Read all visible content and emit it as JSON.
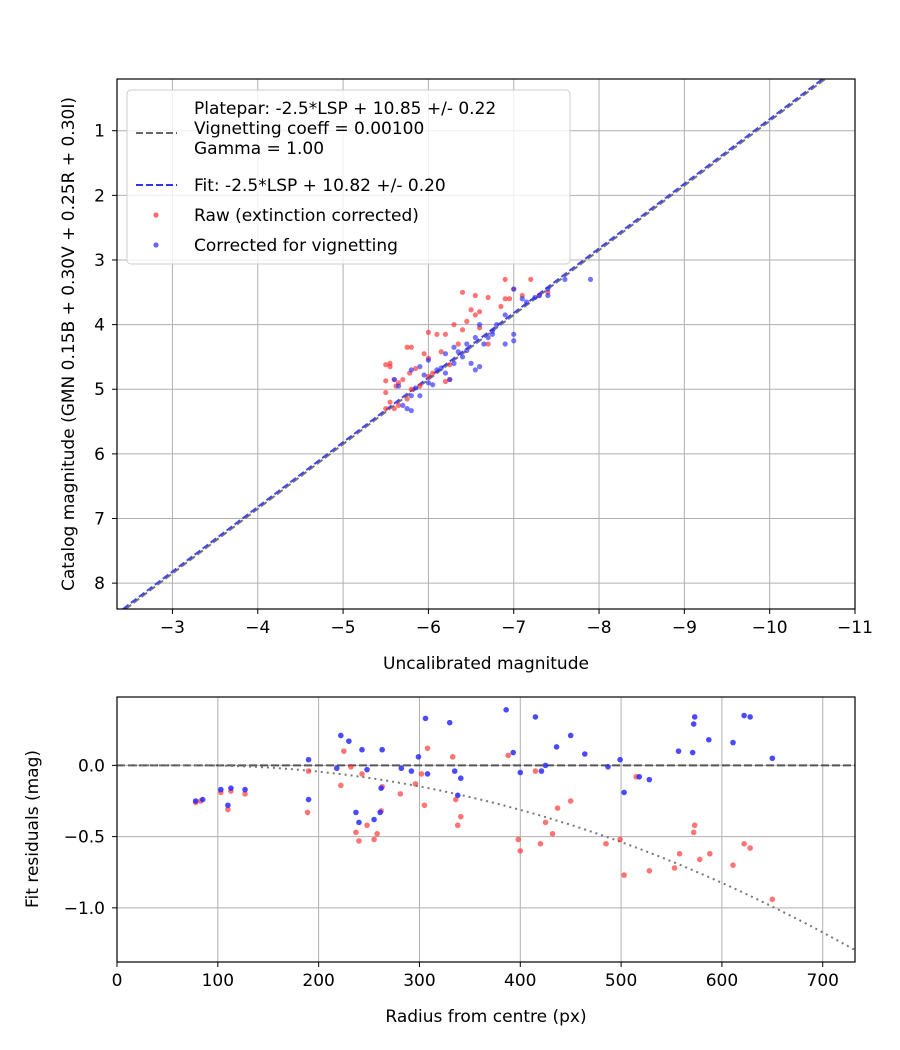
{
  "chart_data": [
    {
      "type": "scatter",
      "xlabel": "Uncalibrated magnitude",
      "ylabel": "Catalog magnitude (GMN 0.15B + 0.30V + 0.25R + 0.30I)",
      "xlim": [
        -2.35,
        -11.0
      ],
      "ylim": [
        8.4,
        0.2
      ],
      "x_inverted": true,
      "y_inverted": true,
      "grid": true,
      "legend_position": "top-left",
      "xticks": [
        -3,
        -4,
        -5,
        -6,
        -7,
        -8,
        -9,
        -10,
        -11
      ],
      "xtick_labels": [
        "−3",
        "−4",
        "−5",
        "−6",
        "−7",
        "−8",
        "−9",
        "−10",
        "−11"
      ],
      "yticks": [
        1,
        2,
        3,
        4,
        5,
        6,
        7,
        8
      ],
      "ytick_labels": [
        "1",
        "2",
        "3",
        "4",
        "5",
        "6",
        "7",
        "8"
      ],
      "lines": [
        {
          "name": "Platepar: -2.5*LSP + 10.85 +/- 0.22\nVignetting coeff = 0.00100\nGamma = 1.00",
          "style": "dashed",
          "color": "#666666",
          "offset": 10.85
        },
        {
          "name": "Fit: -2.5*LSP + 10.82 +/- 0.20",
          "style": "dashed",
          "color": "#3333ee",
          "offset": 10.82
        }
      ],
      "series": [
        {
          "name": "Raw (extinction corrected)",
          "color": "#ff2a2a",
          "points": [
            [
              -5.5,
              4.62
            ],
            [
              -5.55,
              4.65
            ],
            [
              -5.6,
              4.85
            ],
            [
              -5.5,
              4.87
            ],
            [
              -5.62,
              4.95
            ],
            [
              -5.5,
              5.05
            ],
            [
              -5.55,
              5.2
            ],
            [
              -5.5,
              5.3
            ],
            [
              -5.6,
              5.3
            ],
            [
              -5.65,
              5.25
            ],
            [
              -5.75,
              5.15
            ],
            [
              -5.7,
              4.85
            ],
            [
              -5.78,
              4.75
            ],
            [
              -5.75,
              4.35
            ],
            [
              -5.8,
              4.35
            ],
            [
              -5.85,
              4.68
            ],
            [
              -5.9,
              4.95
            ],
            [
              -5.95,
              4.45
            ],
            [
              -6.0,
              4.52
            ],
            [
              -6.0,
              4.12
            ],
            [
              -6.1,
              4.15
            ],
            [
              -6.15,
              4.42
            ],
            [
              -6.2,
              4.88
            ],
            [
              -6.25,
              4.85
            ],
            [
              -6.25,
              4.62
            ],
            [
              -6.3,
              4.0
            ],
            [
              -6.4,
              4.08
            ],
            [
              -6.4,
              3.5
            ],
            [
              -6.5,
              3.77
            ],
            [
              -6.55,
              3.55
            ],
            [
              -6.55,
              3.85
            ],
            [
              -6.6,
              3.8
            ],
            [
              -6.7,
              3.58
            ],
            [
              -6.85,
              3.72
            ],
            [
              -6.9,
              3.6
            ],
            [
              -6.95,
              3.6
            ],
            [
              -6.9,
              3.3
            ],
            [
              -7.0,
              3.45
            ],
            [
              -7.2,
              3.3
            ],
            [
              -7.3,
              3.55
            ],
            [
              -7.4,
              3.5
            ],
            [
              -6.7,
              4.3
            ],
            [
              -5.8,
              5.0
            ],
            [
              -6.05,
              4.75
            ],
            [
              -6.35,
              4.3
            ],
            [
              -5.55,
              4.6
            ],
            [
              -6.2,
              4.15
            ],
            [
              -6.45,
              3.95
            ],
            [
              -6.6,
              4.05
            ],
            [
              -5.65,
              4.9
            ],
            [
              -6.0,
              4.8
            ],
            [
              -7.1,
              3.55
            ]
          ]
        },
        {
          "name": "Corrected for vignetting",
          "color": "#2a2aff",
          "points": [
            [
              -5.6,
              4.85
            ],
            [
              -5.65,
              4.95
            ],
            [
              -5.7,
              5.25
            ],
            [
              -5.75,
              5.3
            ],
            [
              -5.8,
              5.33
            ],
            [
              -5.8,
              5.1
            ],
            [
              -5.85,
              4.98
            ],
            [
              -5.8,
              4.7
            ],
            [
              -5.9,
              4.65
            ],
            [
              -5.95,
              4.78
            ],
            [
              -6.0,
              4.9
            ],
            [
              -6.05,
              4.93
            ],
            [
              -6.1,
              4.7
            ],
            [
              -6.15,
              4.67
            ],
            [
              -6.2,
              4.45
            ],
            [
              -6.25,
              4.85
            ],
            [
              -6.3,
              4.35
            ],
            [
              -6.35,
              4.42
            ],
            [
              -6.4,
              4.5
            ],
            [
              -6.45,
              4.4
            ],
            [
              -6.5,
              4.6
            ],
            [
              -6.55,
              4.7
            ],
            [
              -6.55,
              4.2
            ],
            [
              -6.6,
              4.65
            ],
            [
              -6.65,
              4.3
            ],
            [
              -6.7,
              4.2
            ],
            [
              -6.75,
              4.1
            ],
            [
              -6.8,
              4.0
            ],
            [
              -6.9,
              4.3
            ],
            [
              -7.0,
              4.15
            ],
            [
              -7.0,
              4.25
            ],
            [
              -7.0,
              3.45
            ],
            [
              -7.1,
              3.6
            ],
            [
              -7.25,
              3.58
            ],
            [
              -7.3,
              3.55
            ],
            [
              -7.4,
              3.55
            ],
            [
              -7.4,
              3.45
            ],
            [
              -7.6,
              3.3
            ],
            [
              -7.9,
              3.3
            ],
            [
              -6.9,
              3.85
            ],
            [
              -6.6,
              4.0
            ],
            [
              -6.3,
              4.6
            ],
            [
              -6.0,
              4.55
            ],
            [
              -5.9,
              5.1
            ],
            [
              -6.2,
              4.75
            ],
            [
              -6.45,
              4.3
            ],
            [
              -6.75,
              4.15
            ],
            [
              -7.15,
              3.65
            ]
          ]
        }
      ]
    },
    {
      "type": "scatter",
      "xlabel": "Radius from centre (px)",
      "ylabel": "Fit residuals (mag)",
      "xlim": [
        0,
        732
      ],
      "ylim": [
        -1.38,
        0.48
      ],
      "grid": true,
      "xticks": [
        0,
        100,
        200,
        300,
        400,
        500,
        600,
        700
      ],
      "xtick_labels": [
        "0",
        "100",
        "200",
        "300",
        "400",
        "500",
        "600",
        "700"
      ],
      "yticks": [
        0.0,
        -0.5,
        -1.0
      ],
      "ytick_labels": [
        "0.0",
        "−0.5",
        "−1.0"
      ],
      "zero_line": {
        "style": "dashed",
        "color": "#555555",
        "value": 0
      },
      "model_curve": {
        "style": "dotted",
        "color": "#777777",
        "coeff": 0.001,
        "center": 80
      },
      "series": [
        {
          "name": "Raw (extinction corrected)",
          "color": "#ff2a2a",
          "points": [
            [
              78,
              -0.26
            ],
            [
              83,
              -0.25
            ],
            [
              110,
              -0.31
            ],
            [
              113,
              -0.18
            ],
            [
              127,
              -0.2
            ],
            [
              103,
              -0.19
            ],
            [
              189,
              -0.33
            ],
            [
              190,
              -0.04
            ],
            [
              222,
              -0.14
            ],
            [
              225,
              0.1
            ],
            [
              232,
              -0.01
            ],
            [
              237,
              -0.47
            ],
            [
              240,
              -0.53
            ],
            [
              243,
              -0.06
            ],
            [
              248,
              -0.42
            ],
            [
              255,
              -0.52
            ],
            [
              258,
              -0.48
            ],
            [
              262,
              -0.32
            ],
            [
              281,
              -0.2
            ],
            [
              296,
              -0.13
            ],
            [
              302,
              -0.06
            ],
            [
              308,
              0.12
            ],
            [
              305,
              -0.28
            ],
            [
              333,
              0.06
            ],
            [
              336,
              -0.24
            ],
            [
              338,
              -0.42
            ],
            [
              341,
              -0.36
            ],
            [
              388,
              0.07
            ],
            [
              398,
              -0.52
            ],
            [
              400,
              -0.6
            ],
            [
              415,
              -0.04
            ],
            [
              420,
              -0.55
            ],
            [
              425,
              -0.4
            ],
            [
              432,
              -0.48
            ],
            [
              437,
              -0.3
            ],
            [
              450,
              -0.25
            ],
            [
              485,
              -0.55
            ],
            [
              499,
              -0.52
            ],
            [
              503,
              -0.77
            ],
            [
              515,
              -0.08
            ],
            [
              528,
              -0.74
            ],
            [
              553,
              -0.72
            ],
            [
              558,
              -0.62
            ],
            [
              572,
              -0.47
            ],
            [
              573,
              -0.42
            ],
            [
              578,
              -0.66
            ],
            [
              588,
              -0.62
            ],
            [
              611,
              -0.7
            ],
            [
              622,
              -0.55
            ],
            [
              628,
              -0.58
            ],
            [
              650,
              -0.94
            ],
            [
              263,
              -0.15
            ]
          ]
        },
        {
          "name": "Corrected for vignetting",
          "color": "#2a2aff",
          "points": [
            [
              78,
              -0.25
            ],
            [
              85,
              -0.24
            ],
            [
              110,
              -0.28
            ],
            [
              113,
              -0.16
            ],
            [
              127,
              -0.17
            ],
            [
              103,
              -0.17
            ],
            [
              190,
              0.04
            ],
            [
              190,
              -0.24
            ],
            [
              218,
              -0.02
            ],
            [
              222,
              0.21
            ],
            [
              230,
              0.17
            ],
            [
              237,
              -0.33
            ],
            [
              240,
              -0.4
            ],
            [
              243,
              0.11
            ],
            [
              248,
              -0.03
            ],
            [
              255,
              -0.38
            ],
            [
              261,
              -0.33
            ],
            [
              263,
              0.11
            ],
            [
              282,
              -0.02
            ],
            [
              292,
              -0.04
            ],
            [
              299,
              0.06
            ],
            [
              306,
              0.33
            ],
            [
              308,
              -0.06
            ],
            [
              330,
              0.3
            ],
            [
              335,
              -0.04
            ],
            [
              338,
              -0.21
            ],
            [
              341,
              -0.09
            ],
            [
              386,
              0.39
            ],
            [
              393,
              0.09
            ],
            [
              400,
              -0.05
            ],
            [
              415,
              0.34
            ],
            [
              421,
              -0.04
            ],
            [
              425,
              0.0
            ],
            [
              436,
              0.13
            ],
            [
              450,
              0.21
            ],
            [
              464,
              0.08
            ],
            [
              487,
              -0.01
            ],
            [
              499,
              0.04
            ],
            [
              503,
              -0.19
            ],
            [
              518,
              -0.08
            ],
            [
              528,
              -0.1
            ],
            [
              557,
              0.1
            ],
            [
              572,
              0.29
            ],
            [
              573,
              0.34
            ],
            [
              587,
              0.18
            ],
            [
              611,
              0.16
            ],
            [
              622,
              0.35
            ],
            [
              628,
              0.34
            ],
            [
              650,
              0.05
            ],
            [
              262,
              -0.16
            ],
            [
              571,
              0.09
            ]
          ]
        }
      ]
    }
  ]
}
